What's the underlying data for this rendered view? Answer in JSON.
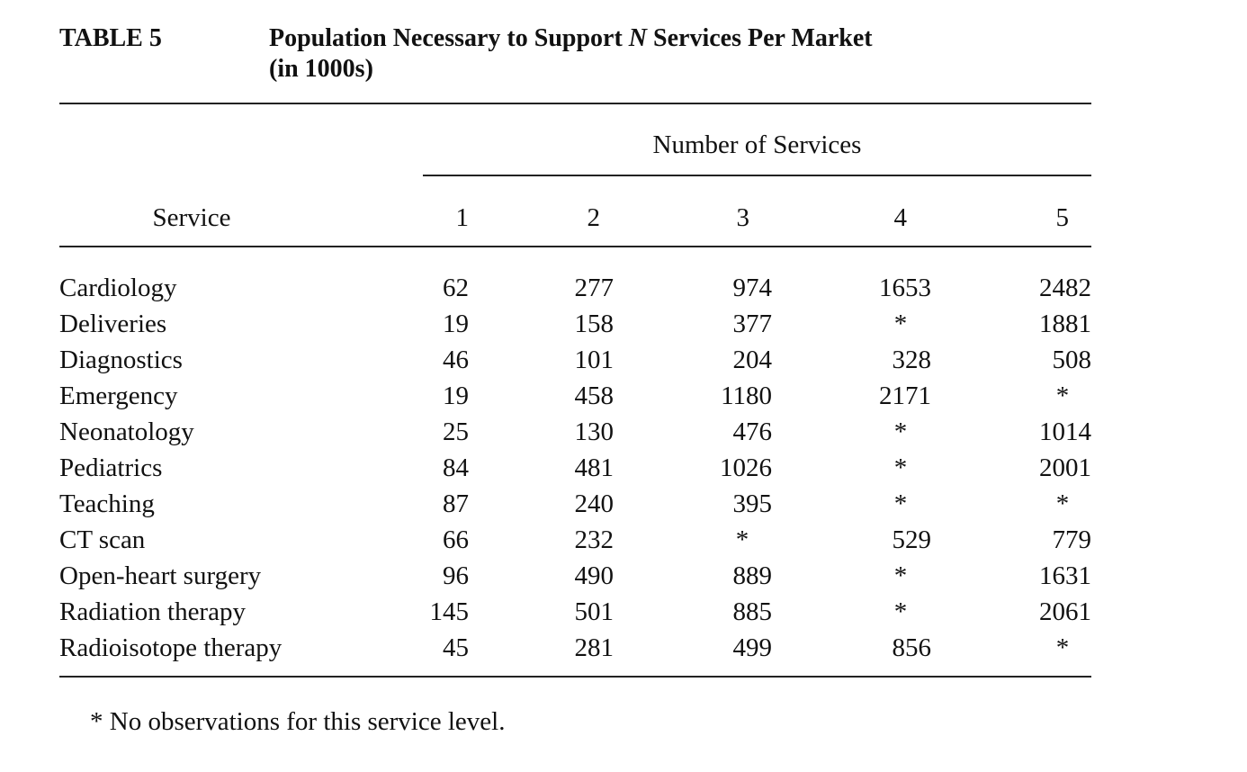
{
  "table": {
    "label": "TABLE 5",
    "title_part1": "Population Necessary to Support ",
    "title_italic": "N",
    "title_part2": " Services Per Market",
    "title_line2": "(in 1000s)",
    "spanner": "Number of Services",
    "service_header": "Service",
    "column_headers": [
      "1",
      "2",
      "3",
      "4",
      "5"
    ],
    "rows": [
      {
        "service": "Cardiology",
        "values": [
          "62",
          "277",
          "974",
          "1653",
          "2482"
        ]
      },
      {
        "service": "Deliveries",
        "values": [
          "19",
          "158",
          "377",
          "*",
          "1881"
        ]
      },
      {
        "service": "Diagnostics",
        "values": [
          "46",
          "101",
          "204",
          "328",
          "508"
        ]
      },
      {
        "service": "Emergency",
        "values": [
          "19",
          "458",
          "1180",
          "2171",
          "*"
        ]
      },
      {
        "service": "Neonatology",
        "values": [
          "25",
          "130",
          "476",
          "*",
          "1014"
        ]
      },
      {
        "service": "Pediatrics",
        "values": [
          "84",
          "481",
          "1026",
          "*",
          "2001"
        ]
      },
      {
        "service": "Teaching",
        "values": [
          "87",
          "240",
          "395",
          "*",
          "*"
        ]
      },
      {
        "service": "CT scan",
        "values": [
          "66",
          "232",
          "*",
          "529",
          "779"
        ]
      },
      {
        "service": "Open-heart surgery",
        "values": [
          "96",
          "490",
          "889",
          "*",
          "1631"
        ]
      },
      {
        "service": "Radiation therapy",
        "values": [
          "145",
          "501",
          "885",
          "*",
          "2061"
        ]
      },
      {
        "service": "Radioisotope therapy",
        "values": [
          "45",
          "281",
          "499",
          "856",
          "*"
        ]
      }
    ],
    "footnote": "* No observations for this service level."
  }
}
